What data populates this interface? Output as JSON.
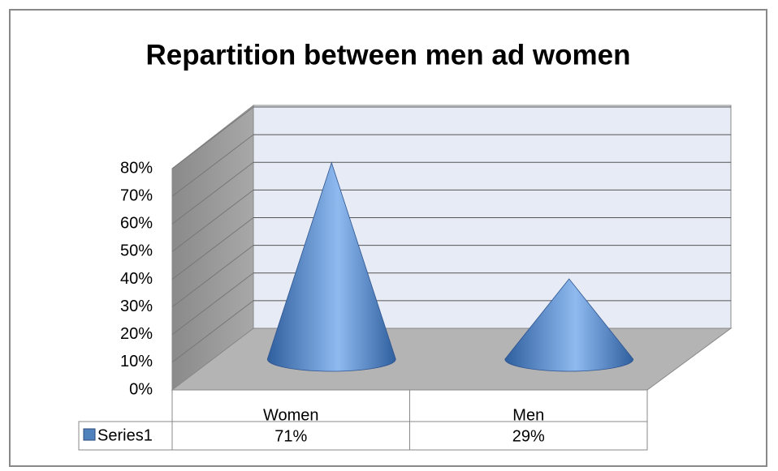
{
  "chart_data": {
    "type": "cone3d",
    "title": "Repartition between men ad women",
    "categories": [
      "Women",
      "Men"
    ],
    "series": [
      {
        "name": "Series1",
        "color": "#4f81bd",
        "values": [
          71,
          29
        ],
        "value_labels": [
          "71%",
          "29%"
        ]
      }
    ],
    "ylim": [
      0,
      80
    ],
    "yticks": [
      {
        "value": 0,
        "label": "0%"
      },
      {
        "value": 10,
        "label": "10%"
      },
      {
        "value": 20,
        "label": "20%"
      },
      {
        "value": 30,
        "label": "30%"
      },
      {
        "value": 40,
        "label": "40%"
      },
      {
        "value": 50,
        "label": "50%"
      },
      {
        "value": 60,
        "label": "60%"
      },
      {
        "value": 70,
        "label": "70%"
      },
      {
        "value": 80,
        "label": "80%"
      }
    ],
    "grid": true
  }
}
